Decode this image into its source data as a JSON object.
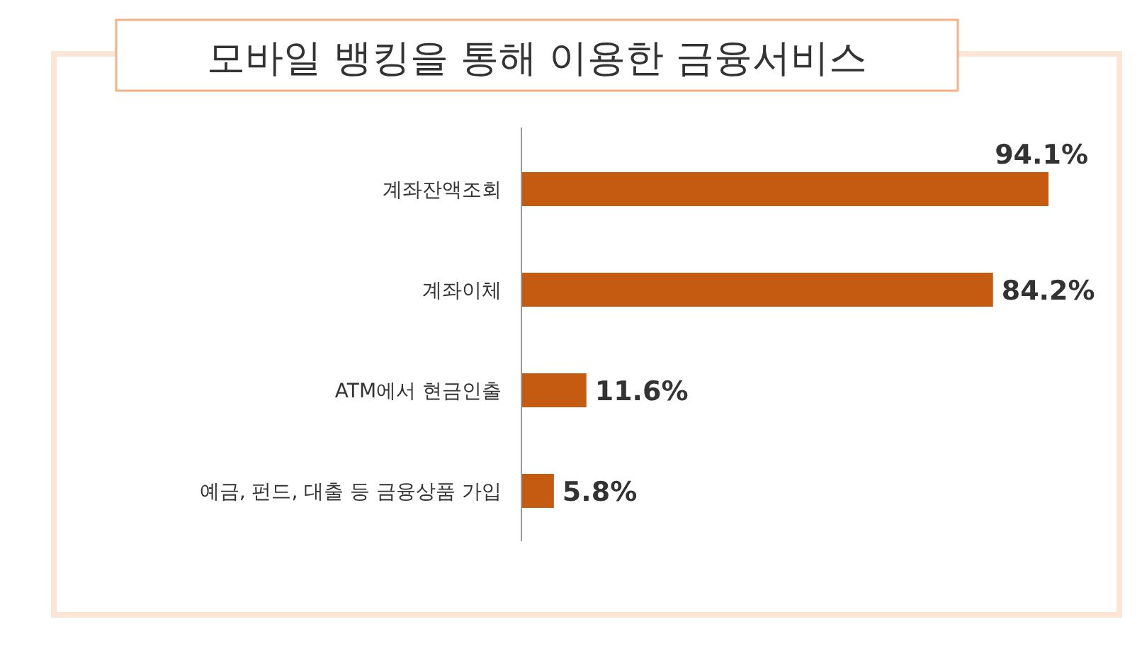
{
  "chart_data": {
    "type": "bar",
    "orientation": "horizontal",
    "title": "모바일 뱅킹을 통해 이용한 금융서비스",
    "categories": [
      "계좌잔액조회",
      "계좌이체",
      "ATM에서 현금인출",
      "예금, 펀드, 대출 등 금융상품 가입"
    ],
    "values": [
      94.1,
      84.2,
      11.6,
      5.8
    ],
    "value_labels": [
      "94.1%",
      "84.2%",
      "11.6%",
      "5.8%"
    ],
    "color": "#c55a11"
  }
}
